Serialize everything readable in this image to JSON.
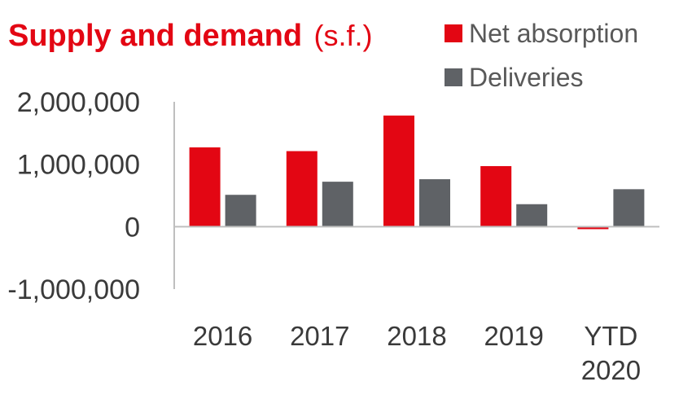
{
  "chart_data": {
    "type": "bar",
    "title": "Supply and demand",
    "title_unit": "(s.f.)",
    "categories": [
      [
        "2016"
      ],
      [
        "2017"
      ],
      [
        "2018"
      ],
      [
        "2019"
      ],
      [
        "YTD",
        "2020"
      ]
    ],
    "series": [
      {
        "name": "Net absorption",
        "color": "#e30613",
        "values": [
          1270000,
          1210000,
          1780000,
          970000,
          -40000
        ]
      },
      {
        "name": "Deliveries",
        "color": "#5f6266",
        "values": [
          510000,
          720000,
          760000,
          360000,
          600000
        ]
      }
    ],
    "y_ticks": [
      {
        "value": 2000000,
        "label": "2,000,000"
      },
      {
        "value": 1000000,
        "label": "1,000,000"
      },
      {
        "value": 0,
        "label": "0"
      },
      {
        "value": -1000000,
        "label": "-1,000,000"
      }
    ],
    "ylim": [
      -1000000,
      2000000
    ],
    "legend_position": "top-right",
    "grid": false,
    "colors": {
      "title": "#e30613",
      "axis": "#bfbfbf",
      "text": "#3a3a3a"
    }
  }
}
